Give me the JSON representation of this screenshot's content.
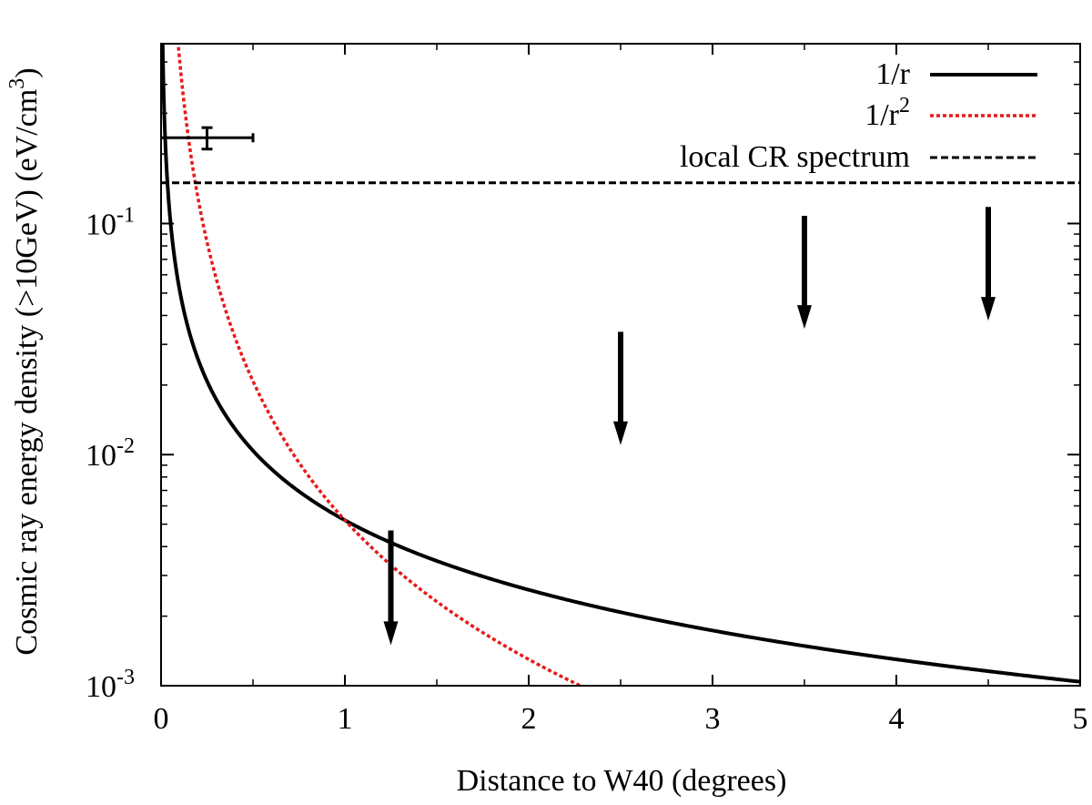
{
  "chart_data": {
    "type": "line",
    "xlabel": "Distance to W40 (degrees)",
    "ylabel": {
      "prefix": "Cosmic ray energy density (>10GeV) (eV/cm",
      "exponent": "3",
      "suffix": ")"
    },
    "xlim": [
      0,
      5
    ],
    "ylim": [
      0.001,
      0.6
    ],
    "yscale": "log",
    "x_ticks": [
      {
        "value": 0,
        "label": "0"
      },
      {
        "value": 1,
        "label": "1"
      },
      {
        "value": 2,
        "label": "2"
      },
      {
        "value": 3,
        "label": "3"
      },
      {
        "value": 4,
        "label": "4"
      },
      {
        "value": 5,
        "label": "5"
      }
    ],
    "y_ticks": [
      {
        "value": 0.001,
        "base": "10",
        "exp": "-3"
      },
      {
        "value": 0.01,
        "base": "10",
        "exp": "-2"
      },
      {
        "value": 0.1,
        "base": "10",
        "exp": "-1"
      }
    ],
    "series": [
      {
        "name": "1/r",
        "legend": {
          "base": "1/r",
          "exp": ""
        },
        "model": "inverse_r",
        "coefficient": 0.0052,
        "color": "#000000",
        "style": "solid"
      },
      {
        "name": "1/r^2",
        "legend": {
          "base": "1/r",
          "exp": "2"
        },
        "model": "inverse_r2",
        "coefficient": 0.0052,
        "color": "#e8191a",
        "style": "dotted"
      },
      {
        "name": "local CR spectrum",
        "legend": {
          "base": "local CR spectrum",
          "exp": ""
        },
        "model": "constant",
        "value": 0.15,
        "color": "#000000",
        "style": "dashed"
      }
    ],
    "measurement": {
      "x": 0.25,
      "x_err": [
        0.0,
        0.5
      ],
      "y": 0.235,
      "y_err": [
        0.21,
        0.26
      ]
    },
    "upper_limits": [
      {
        "x": 1.25,
        "y": 0.0047,
        "arrow_to": 0.0015
      },
      {
        "x": 2.5,
        "y": 0.034,
        "arrow_to": 0.011
      },
      {
        "x": 3.5,
        "y": 0.108,
        "arrow_to": 0.035
      },
      {
        "x": 4.5,
        "y": 0.118,
        "arrow_to": 0.038
      }
    ],
    "legend_position": "top-right"
  }
}
